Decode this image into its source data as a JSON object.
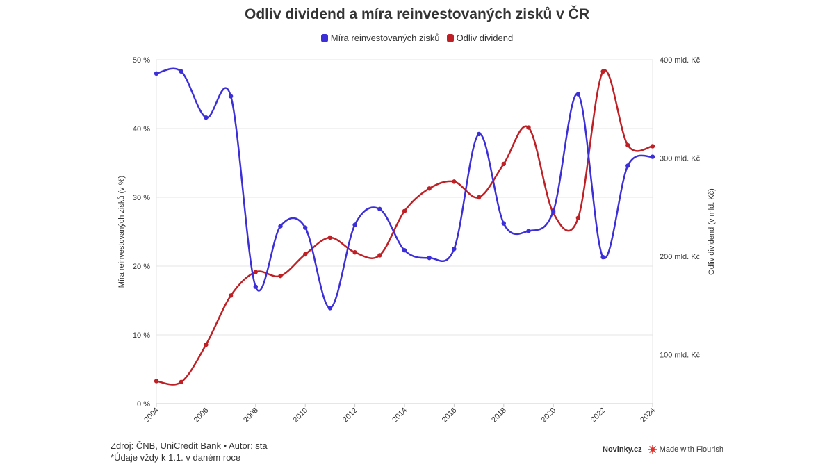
{
  "chart_data": {
    "type": "line",
    "title": "Odliv dividend a míra reinvestovaných zisků v ČR",
    "x": [
      2004,
      2005,
      2006,
      2007,
      2008,
      2009,
      2010,
      2011,
      2012,
      2013,
      2014,
      2015,
      2016,
      2017,
      2018,
      2019,
      2020,
      2021,
      2022,
      2023,
      2024
    ],
    "x_ticks": [
      "2004",
      "2006",
      "2008",
      "2010",
      "2012",
      "2014",
      "2016",
      "2018",
      "2020",
      "2022",
      "2024"
    ],
    "series": [
      {
        "name": "Míra reinvestovaných zisků",
        "axis": "left",
        "color": "#3c2fd8",
        "values": [
          48.0,
          48.3,
          41.6,
          44.7,
          17.0,
          25.8,
          25.6,
          13.9,
          26.0,
          28.3,
          22.3,
          21.2,
          22.5,
          39.2,
          26.2,
          25.1,
          28.0,
          45.0,
          21.3,
          34.6,
          35.9
        ]
      },
      {
        "name": "Odliv dividend",
        "axis": "right",
        "color": "#bf2025",
        "values": [
          73,
          72,
          110,
          160,
          184,
          180,
          202,
          219,
          204,
          201,
          246,
          269,
          276,
          260,
          294,
          331,
          244,
          239,
          388,
          313,
          312
        ]
      }
    ],
    "left_axis": {
      "label": "Míra reinvestovaných zisků (v %)",
      "ylim": [
        0,
        50
      ],
      "ticks": [
        {
          "value": 0,
          "label": "0 %"
        },
        {
          "value": 10,
          "label": "10 %"
        },
        {
          "value": 20,
          "label": "20 %"
        },
        {
          "value": 30,
          "label": "30 %"
        },
        {
          "value": 40,
          "label": "40 %"
        },
        {
          "value": 50,
          "label": "50 %"
        }
      ]
    },
    "right_axis": {
      "label": "Odliv dividend (v mld. Kč)",
      "ylim": [
        50,
        400
      ],
      "ticks": [
        {
          "value": 100,
          "label": "100 mld. Kč"
        },
        {
          "value": 200,
          "label": "200 mld. Kč"
        },
        {
          "value": 300,
          "label": "300 mld. Kč"
        },
        {
          "value": 400,
          "label": "400 mld. Kč"
        }
      ]
    },
    "grid": true,
    "legend_position": "top-center"
  },
  "footer": {
    "source": "Zdroj: ČNB, UniCredit Bank • Autor: sta",
    "note": "*Údaje vždy k 1.1. v daném roce",
    "publisher": "Novinky.cz",
    "made_with": "Made with Flourish"
  },
  "colors": {
    "accent_blue": "#3c2fd8",
    "accent_red": "#bf2025",
    "grid": "#e6e6e6",
    "text": "#333333"
  }
}
